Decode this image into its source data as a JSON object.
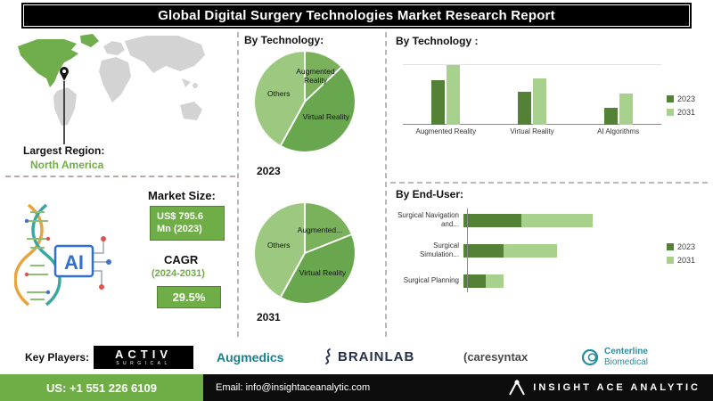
{
  "header": {
    "title": "Global Digital Surgery Technologies Market Research Report"
  },
  "region": {
    "label": "Largest Region:",
    "value": "North America"
  },
  "market": {
    "size_label": "Market Size:",
    "size_line1": "US$ 795.6",
    "size_line2": "Mn (2023)",
    "cagr_label": "CAGR",
    "cagr_period": "(2024-2031)",
    "cagr_value": "29.5%",
    "ai_text": "AI"
  },
  "colors": {
    "accent_green": "#6fad47",
    "dark_green": "#538135",
    "light_green": "#a9d18e"
  },
  "chart_data": [
    {
      "type": "pie",
      "title": "By Technology:",
      "year": "2023",
      "labels": [
        "Augmented Reality",
        "Virtual Reality",
        "Others"
      ],
      "values": [
        13,
        45,
        42
      ],
      "colors": [
        "#79b25a",
        "#68a74d",
        "#9cc97f"
      ]
    },
    {
      "type": "pie",
      "year": "2031",
      "labels": [
        "Augmented...",
        "Virtual Reality",
        "Others"
      ],
      "values": [
        19,
        39,
        42
      ],
      "colors": [
        "#79b25a",
        "#68a74d",
        "#9cc97f"
      ]
    },
    {
      "type": "bar",
      "title": "By  Technology :",
      "categories": [
        "Augmented Reality",
        "Virtual Reality",
        "AI Algorithms"
      ],
      "series": [
        {
          "name": "2023",
          "color": "#538135",
          "values": [
            50,
            37,
            19
          ]
        },
        {
          "name": "2031",
          "color": "#a9d18e",
          "values": [
            67,
            52,
            35
          ]
        }
      ],
      "legend_position": "right"
    },
    {
      "type": "bar-horizontal-stacked",
      "title": "By End-User:",
      "categories": [
        "Surgical Navigation and...",
        "Surgical Simulation...",
        "Surgical Planning"
      ],
      "series": [
        {
          "name": "2023",
          "color": "#538135",
          "values": [
            65,
            45,
            25
          ]
        },
        {
          "name": "2031",
          "color": "#a9d18e",
          "values": [
            80,
            60,
            20
          ]
        }
      ],
      "legend_position": "right"
    }
  ],
  "key_players": {
    "label": "Key Players:",
    "activ_line1": "ACTIV",
    "activ_line2": "SURGICAL",
    "augmedics": "Augmedics",
    "brainlab": "BRAINLAB",
    "caresyntax": "(caresyntax",
    "centerline_line1": "Centerline",
    "centerline_line2": "Biomedical"
  },
  "footer": {
    "phone": "US: +1 551 226 6109",
    "email": "Email: info@insightaceanalytic.com",
    "brand": "INSIGHT ACE ANALYTIC"
  }
}
